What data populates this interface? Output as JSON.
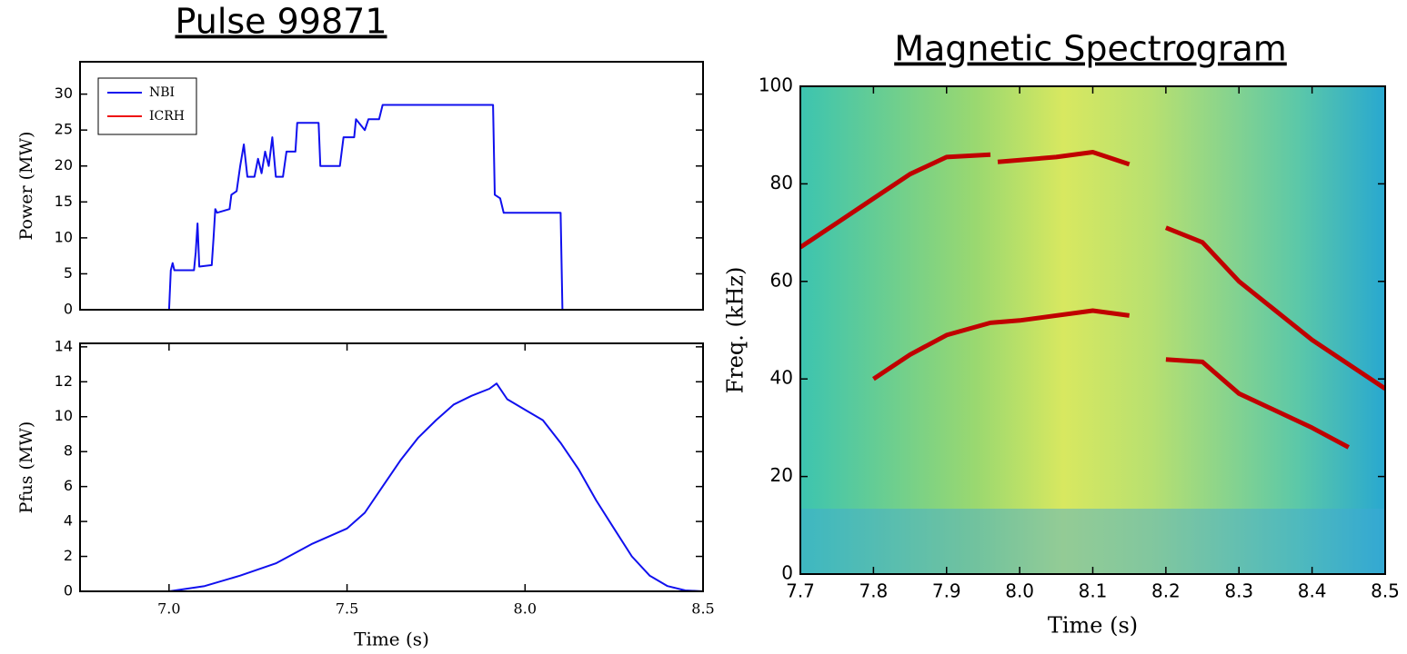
{
  "chart_data": [
    {
      "type": "line",
      "title": "Pulse 99871",
      "ylabel": "Power (MW)",
      "legend": "upper left",
      "xlim": [
        6.75,
        8.5
      ],
      "ylim": [
        0,
        34.5
      ],
      "yticks": [
        0,
        5,
        10,
        15,
        20,
        25,
        30
      ],
      "series": [
        {
          "name": "NBI",
          "color": "#1010ee",
          "x": [
            7.0,
            7.005,
            7.01,
            7.015,
            7.07,
            7.075,
            7.08,
            7.085,
            7.12,
            7.125,
            7.13,
            7.135,
            7.17,
            7.175,
            7.19,
            7.2,
            7.21,
            7.22,
            7.24,
            7.25,
            7.26,
            7.27,
            7.28,
            7.29,
            7.3,
            7.32,
            7.33,
            7.355,
            7.36,
            7.42,
            7.425,
            7.48,
            7.49,
            7.52,
            7.525,
            7.55,
            7.56,
            7.59,
            7.6,
            7.91,
            7.915,
            7.93,
            7.94,
            8.1,
            8.105
          ],
          "values": [
            0,
            5.5,
            6.5,
            5.5,
            5.5,
            8,
            12,
            6,
            6.2,
            10,
            14,
            13.5,
            14,
            16,
            16.5,
            20,
            23,
            18.5,
            18.5,
            21,
            19,
            22,
            20,
            24,
            18.5,
            18.5,
            22,
            22,
            26,
            26,
            20,
            20,
            24,
            24,
            26.5,
            25,
            26.5,
            26.5,
            28.5,
            28.5,
            16,
            15.5,
            13.5,
            13.5,
            0
          ]
        },
        {
          "name": "ICRH",
          "color": "#ee1010",
          "x": [],
          "values": []
        }
      ]
    },
    {
      "type": "line",
      "xlabel": "Time (s)",
      "ylabel": "Pfus (MW)",
      "color": "#1010ee",
      "xlim": [
        6.75,
        8.5
      ],
      "ylim": [
        0,
        14.2
      ],
      "xticks": [
        {
          "value": 7,
          "label": "7.0"
        },
        7.5,
        {
          "value": 8,
          "label": "8.0"
        },
        8.5
      ],
      "yticks": [
        0,
        2,
        4,
        6,
        8,
        10,
        12,
        14
      ],
      "x": [
        7.0,
        7.1,
        7.2,
        7.3,
        7.4,
        7.5,
        7.55,
        7.6,
        7.65,
        7.7,
        7.75,
        7.8,
        7.85,
        7.9,
        7.92,
        7.95,
        8.0,
        8.05,
        8.1,
        8.15,
        8.2,
        8.25,
        8.3,
        8.35,
        8.4,
        8.45,
        8.5
      ],
      "values": [
        0,
        0.3,
        0.9,
        1.6,
        2.7,
        3.6,
        4.5,
        6,
        7.5,
        8.8,
        9.8,
        10.7,
        11.2,
        11.6,
        11.9,
        11.0,
        10.4,
        9.8,
        8.5,
        7.0,
        5.2,
        3.6,
        2.0,
        0.9,
        0.3,
        0.05,
        0
      ]
    },
    {
      "type": "spectrogram",
      "title": "Magnetic Spectrogram",
      "xlabel": "Time (s)",
      "ylabel": "Freq. (kHz)",
      "xlim": [
        7.7,
        8.5
      ],
      "ylim": [
        0,
        100
      ],
      "xticks": [
        7.7,
        7.8,
        7.9,
        {
          "value": 8,
          "label": "8.0"
        },
        8.1,
        8.2,
        8.3,
        8.4,
        8.5
      ],
      "yticks": [
        0,
        20,
        40,
        60,
        80,
        100
      ],
      "color": "#c00000",
      "modes": [
        {
          "x": [
            7.7,
            7.75,
            7.8,
            7.85,
            7.9,
            7.96,
            7.965,
            7.97,
            8.05,
            8.1,
            8.15
          ],
          "values": [
            67,
            72,
            77,
            82,
            85.5,
            86,
            null,
            84.5,
            85.5,
            86.5,
            84
          ]
        },
        {
          "x": [
            7.8,
            7.85,
            7.9,
            7.96,
            8.0,
            8.1,
            8.15
          ],
          "values": [
            40,
            45,
            49,
            51.5,
            52,
            54,
            53
          ]
        },
        {
          "x": [
            8.2,
            8.25,
            8.3,
            8.4,
            8.45
          ],
          "values": [
            44,
            43.5,
            37,
            30,
            26
          ]
        },
        {
          "x": [
            8.2,
            8.25,
            8.3,
            8.4,
            8.5
          ],
          "values": [
            71,
            68,
            60,
            48,
            38
          ]
        }
      ]
    }
  ]
}
